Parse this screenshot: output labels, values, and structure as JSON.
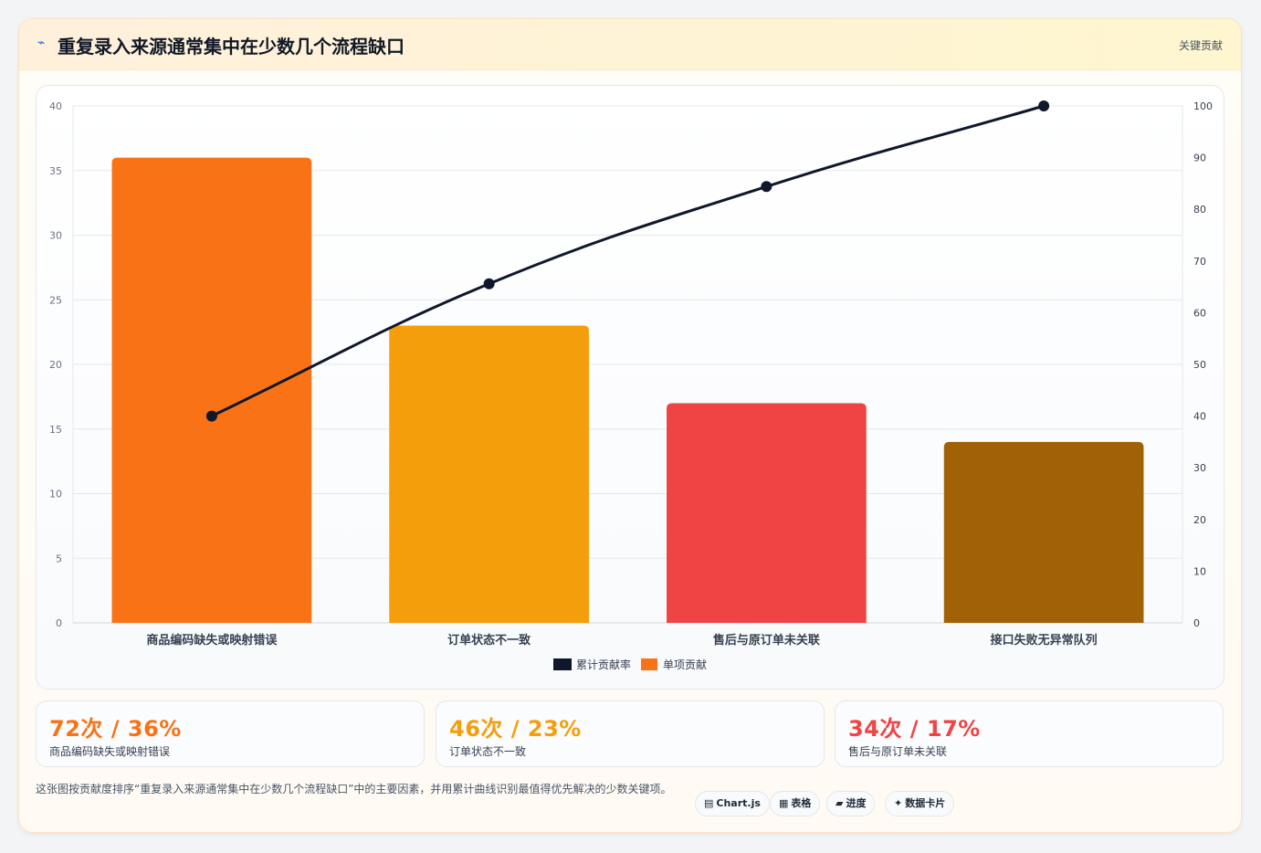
{
  "header": {
    "icon": "lightning-icon",
    "title": "重复录入来源通常集中在少数几个流程缺口",
    "badge": "关键贡献"
  },
  "chart_data": {
    "type": "bar",
    "categories": [
      "商品编码缺失或映射错误",
      "订单状态不一致",
      "售后与原订单未关联",
      "接口失败无异常队列"
    ],
    "series": [
      {
        "name": "单项贡献",
        "type": "bar",
        "values": [
          36,
          23,
          17,
          14
        ],
        "colors": [
          "#f97316",
          "#f59e0b",
          "#ef4444",
          "#a16207"
        ]
      },
      {
        "name": "累计贡献率",
        "type": "line",
        "values": [
          40,
          65.6,
          84.4,
          100
        ],
        "color": "#0f172a"
      }
    ],
    "y_left": {
      "min": 0,
      "max": 40,
      "ticks": [
        0,
        5,
        10,
        15,
        20,
        25,
        30,
        35,
        40
      ]
    },
    "y_right": {
      "min": 0,
      "max": 100,
      "ticks": [
        0,
        10,
        20,
        30,
        40,
        50,
        60,
        70,
        80,
        90,
        100
      ]
    },
    "legend": [
      "累计贡献率",
      "单项贡献"
    ],
    "legend_position": "bottom",
    "grid": true
  },
  "stats": [
    {
      "value": "72次 / 36%",
      "label": "商品编码缺失或映射错误",
      "color": "#f97316"
    },
    {
      "value": "46次 / 23%",
      "label": "订单状态不一致",
      "color": "#f59e0b"
    },
    {
      "value": "34次 / 17%",
      "label": "售后与原订单未关联",
      "color": "#ef4444"
    }
  ],
  "note": "这张图按贡献度排序“重复录入来源通常集中在少数几个流程缺口”中的主要因素，并用累计曲线识别最值得优先解决的少数关键项。",
  "tags": [
    {
      "icon": "▤",
      "label": "Chart.js"
    },
    {
      "icon": "▦",
      "label": "表格"
    },
    {
      "icon": "▰",
      "label": "进度"
    },
    {
      "icon": "✦",
      "label": "数据卡片"
    }
  ]
}
